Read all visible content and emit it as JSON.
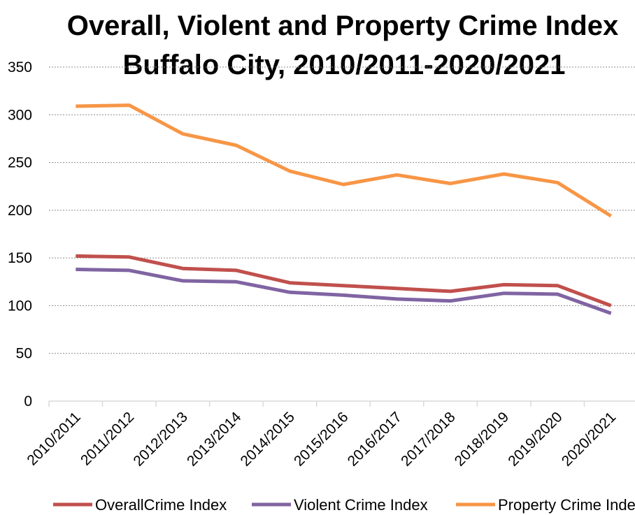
{
  "chart_data": {
    "type": "line",
    "title": "Overall, Violent and Property Crime Index",
    "subtitle": "Buffalo City, 2010/2011-2020/2021",
    "xlabel": "",
    "ylabel": "",
    "categories": [
      "2010/2011",
      "2011/2012",
      "2012/2013",
      "2013/2014",
      "2014/2015",
      "2015/2016",
      "2016/2017",
      "2017/2018",
      "2018/2019",
      "2019/2020",
      "2020/2021"
    ],
    "ylim": [
      0,
      350
    ],
    "yticks": [
      "0",
      "50",
      "100",
      "150",
      "200",
      "250",
      "300",
      "350"
    ],
    "grid": true,
    "legend_position": "bottom",
    "series": [
      {
        "name": "OverallCrime Index",
        "color": "#c0504d",
        "values": [
          152,
          151,
          139,
          137,
          124,
          121,
          118,
          115,
          122,
          121,
          100
        ]
      },
      {
        "name": "Violent Crime Index",
        "color": "#8064a2",
        "values": [
          138,
          137,
          126,
          125,
          114,
          111,
          107,
          105,
          113,
          112,
          92
        ]
      },
      {
        "name": "Property Crime Index",
        "color": "#f79646",
        "values": [
          309,
          310,
          280,
          268,
          241,
          227,
          237,
          228,
          238,
          229,
          194
        ]
      }
    ]
  }
}
